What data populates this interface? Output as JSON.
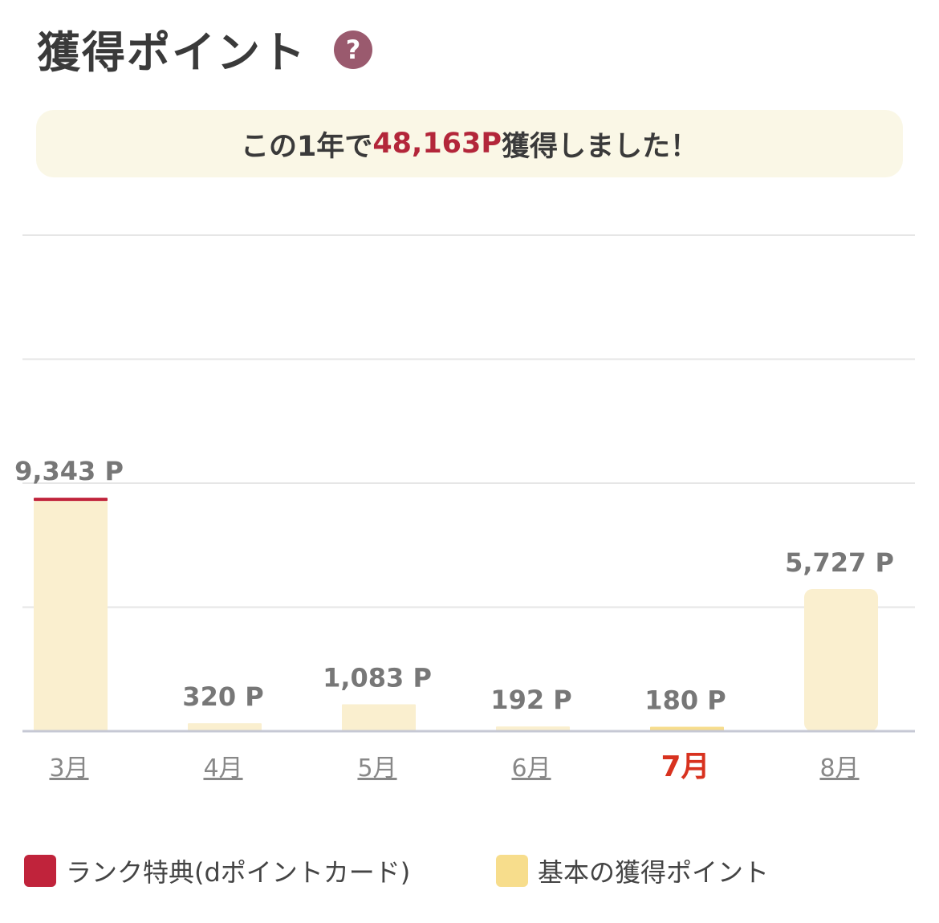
{
  "header": {
    "title": "獲得ポイント",
    "help_glyph": "?"
  },
  "summary": {
    "prefix": "この1年で",
    "points": "48,163P",
    "suffix": "獲得しました！"
  },
  "colors": {
    "rank": "#c0233b",
    "basic": "#f7dd8c",
    "basic_bar": "#faefcf",
    "accent": "#d8321f",
    "grid": "#e6e6e6",
    "axis": "#c6c8d4"
  },
  "chart_data": {
    "type": "bar",
    "stacked": true,
    "categories": [
      "3月",
      "4月",
      "5月",
      "6月",
      "7月",
      "8月"
    ],
    "selected_category": "7月",
    "value_labels": [
      "9,343 P",
      "320 P",
      "1,083 P",
      "192 P",
      "180 P",
      "5,727 P"
    ],
    "series": [
      {
        "name": "ランク特典(dポイントカード)",
        "color": "#c0233b",
        "values": [
          60,
          0,
          0,
          0,
          0,
          0
        ]
      },
      {
        "name": "基本の獲得ポイント",
        "color": "#f7dd8c",
        "values": [
          9283,
          320,
          1083,
          192,
          180,
          5727
        ]
      }
    ],
    "ylim": [
      0,
      20000
    ],
    "grid": true
  }
}
